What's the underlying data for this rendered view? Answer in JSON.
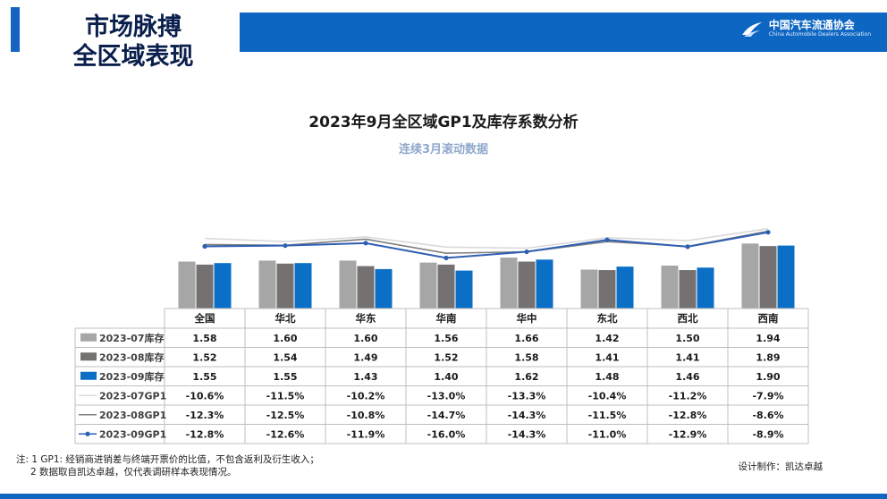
{
  "header": {
    "title_line1": "市场脉搏",
    "title_line2": "全区域表现"
  },
  "logo": {
    "cn": "中国汽车流通协会",
    "en": "China Automobile Dealers Association"
  },
  "colors": {
    "accent": "#0d66c2",
    "s07": "#a6a6a6",
    "s08": "#767171",
    "s09": "#0b6fc5",
    "gp07": "#d9d9d9",
    "gp08": "#7f7f7f",
    "gp09": "#2f5fb3"
  },
  "chart_data": {
    "type": "bar",
    "title": "2023年9月全区域GP1及库存系数分析",
    "subtitle": "连续3月滚动数据",
    "categories": [
      "全国",
      "华北",
      "华东",
      "华南",
      "华中",
      "东北",
      "西北",
      "西南"
    ],
    "series": [
      {
        "name": "2023-07库存",
        "kind": "bar",
        "values": [
          1.58,
          1.6,
          1.6,
          1.56,
          1.66,
          1.42,
          1.5,
          1.94
        ],
        "display": [
          "1.58",
          "1.60",
          "1.60",
          "1.56",
          "1.66",
          "1.42",
          "1.50",
          "1.94"
        ]
      },
      {
        "name": "2023-08库存",
        "kind": "bar",
        "values": [
          1.52,
          1.54,
          1.49,
          1.52,
          1.58,
          1.41,
          1.41,
          1.89
        ],
        "display": [
          "1.52",
          "1.54",
          "1.49",
          "1.52",
          "1.58",
          "1.41",
          "1.41",
          "1.89"
        ]
      },
      {
        "name": "2023-09库存",
        "kind": "bar",
        "values": [
          1.55,
          1.55,
          1.43,
          1.4,
          1.62,
          1.48,
          1.46,
          1.9
        ],
        "display": [
          "1.55",
          "1.55",
          "1.43",
          "1.40",
          "1.62",
          "1.48",
          "1.46",
          "1.90"
        ]
      },
      {
        "name": "2023-07GP1",
        "kind": "line",
        "values": [
          -10.6,
          -11.5,
          -10.2,
          -13.0,
          -13.3,
          -10.4,
          -11.2,
          -7.9
        ],
        "display": [
          "-10.6%",
          "-11.5%",
          "-10.2%",
          "-13.0%",
          "-13.3%",
          "-10.4%",
          "-11.2%",
          "-7.9%"
        ]
      },
      {
        "name": "2023-08GP1",
        "kind": "line",
        "values": [
          -12.3,
          -12.5,
          -10.8,
          -14.7,
          -14.3,
          -11.5,
          -12.8,
          -8.6
        ],
        "display": [
          "-12.3%",
          "-12.5%",
          "-10.8%",
          "-14.7%",
          "-14.3%",
          "-11.5%",
          "-12.8%",
          "-8.6%"
        ]
      },
      {
        "name": "2023-09GP1",
        "kind": "line",
        "markers": true,
        "values": [
          -12.8,
          -12.6,
          -11.9,
          -16.0,
          -14.3,
          -11.0,
          -12.9,
          -8.9
        ],
        "display": [
          "-12.8%",
          "-12.6%",
          "-11.9%",
          "-16.0%",
          "-14.3%",
          "-11.0%",
          "-12.9%",
          "-8.9%"
        ]
      }
    ],
    "bar_range": [
      0,
      2.0
    ],
    "line_range": [
      -30,
      -6
    ],
    "legend": "data-table"
  },
  "notes": {
    "line1": "注: 1  GP1: 经销商进销差与终端开票价的比值，不包含返利及衍生收入；",
    "line2": "2 数据取自凯达卓越，仅代表调研样本表现情况。"
  },
  "credit": "设计制作：凯达卓越"
}
